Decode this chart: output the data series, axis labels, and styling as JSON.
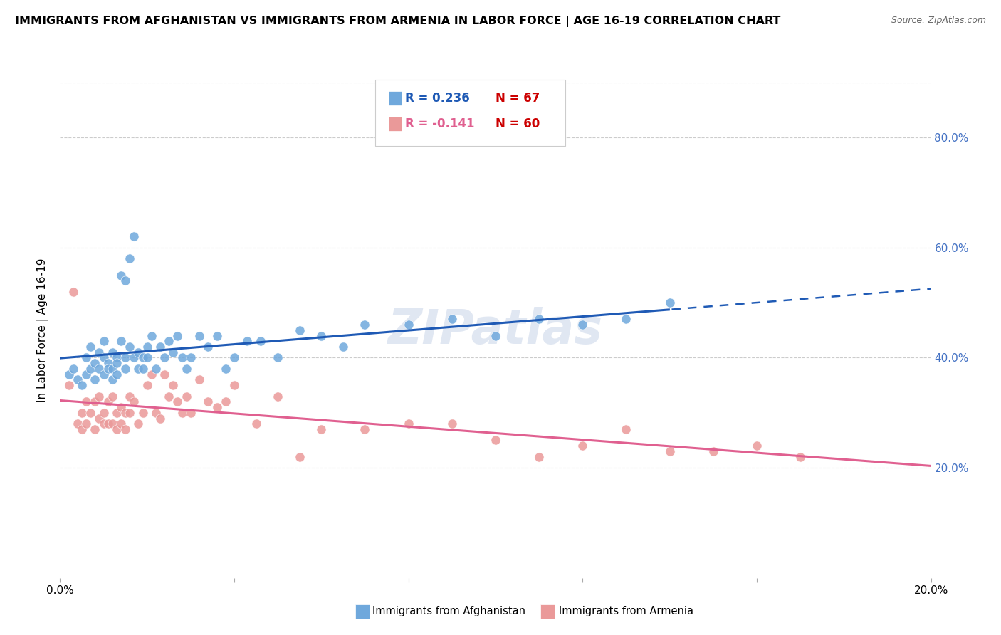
{
  "title": "IMMIGRANTS FROM AFGHANISTAN VS IMMIGRANTS FROM ARMENIA IN LABOR FORCE | AGE 16-19 CORRELATION CHART",
  "source": "Source: ZipAtlas.com",
  "ylabel": "In Labor Force | Age 16-19",
  "xlim": [
    0.0,
    0.2
  ],
  "ylim": [
    0.0,
    0.9
  ],
  "yticks": [
    0.2,
    0.4,
    0.6,
    0.8
  ],
  "ytick_labels": [
    "20.0%",
    "40.0%",
    "60.0%",
    "80.0%"
  ],
  "xticks": [
    0.0,
    0.04,
    0.08,
    0.12,
    0.16,
    0.2
  ],
  "xtick_labels": [
    "0.0%",
    "",
    "",
    "",
    "",
    "20.0%"
  ],
  "afghanistan_color": "#6fa8dc",
  "armenia_color": "#ea9999",
  "trendline_afghanistan_color": "#1f5ab5",
  "trendline_armenia_color": "#e06090",
  "legend_R_afghanistan": "R = 0.236",
  "legend_N_afghanistan": "N = 67",
  "legend_R_armenia": "R = -0.141",
  "legend_N_armenia": "N = 60",
  "watermark": "ZIPatlas",
  "afghanistan_x": [
    0.002,
    0.003,
    0.004,
    0.005,
    0.006,
    0.006,
    0.007,
    0.007,
    0.008,
    0.008,
    0.009,
    0.009,
    0.01,
    0.01,
    0.01,
    0.011,
    0.011,
    0.012,
    0.012,
    0.012,
    0.013,
    0.013,
    0.013,
    0.014,
    0.014,
    0.015,
    0.015,
    0.015,
    0.016,
    0.016,
    0.017,
    0.017,
    0.018,
    0.018,
    0.019,
    0.019,
    0.02,
    0.02,
    0.021,
    0.022,
    0.023,
    0.024,
    0.025,
    0.026,
    0.027,
    0.028,
    0.029,
    0.03,
    0.032,
    0.034,
    0.036,
    0.038,
    0.04,
    0.043,
    0.046,
    0.05,
    0.055,
    0.06,
    0.065,
    0.07,
    0.08,
    0.09,
    0.1,
    0.11,
    0.12,
    0.13,
    0.14
  ],
  "afghanistan_y": [
    0.37,
    0.38,
    0.36,
    0.35,
    0.4,
    0.37,
    0.38,
    0.42,
    0.36,
    0.39,
    0.38,
    0.41,
    0.4,
    0.37,
    0.43,
    0.39,
    0.38,
    0.41,
    0.38,
    0.36,
    0.4,
    0.37,
    0.39,
    0.43,
    0.55,
    0.4,
    0.38,
    0.54,
    0.42,
    0.58,
    0.4,
    0.62,
    0.41,
    0.38,
    0.4,
    0.38,
    0.42,
    0.4,
    0.44,
    0.38,
    0.42,
    0.4,
    0.43,
    0.41,
    0.44,
    0.4,
    0.38,
    0.4,
    0.44,
    0.42,
    0.44,
    0.38,
    0.4,
    0.43,
    0.43,
    0.4,
    0.45,
    0.44,
    0.42,
    0.46,
    0.46,
    0.47,
    0.44,
    0.47,
    0.46,
    0.47,
    0.5
  ],
  "armenia_x": [
    0.002,
    0.003,
    0.004,
    0.005,
    0.005,
    0.006,
    0.006,
    0.007,
    0.008,
    0.008,
    0.009,
    0.009,
    0.01,
    0.01,
    0.011,
    0.011,
    0.012,
    0.012,
    0.013,
    0.013,
    0.014,
    0.014,
    0.015,
    0.015,
    0.016,
    0.016,
    0.017,
    0.018,
    0.019,
    0.02,
    0.021,
    0.022,
    0.023,
    0.024,
    0.025,
    0.026,
    0.027,
    0.028,
    0.029,
    0.03,
    0.032,
    0.034,
    0.036,
    0.038,
    0.04,
    0.045,
    0.05,
    0.055,
    0.06,
    0.07,
    0.08,
    0.09,
    0.1,
    0.11,
    0.12,
    0.13,
    0.14,
    0.15,
    0.16,
    0.17
  ],
  "armenia_y": [
    0.35,
    0.52,
    0.28,
    0.3,
    0.27,
    0.32,
    0.28,
    0.3,
    0.27,
    0.32,
    0.29,
    0.33,
    0.28,
    0.3,
    0.32,
    0.28,
    0.33,
    0.28,
    0.3,
    0.27,
    0.31,
    0.28,
    0.3,
    0.27,
    0.33,
    0.3,
    0.32,
    0.28,
    0.3,
    0.35,
    0.37,
    0.3,
    0.29,
    0.37,
    0.33,
    0.35,
    0.32,
    0.3,
    0.33,
    0.3,
    0.36,
    0.32,
    0.31,
    0.32,
    0.35,
    0.28,
    0.33,
    0.22,
    0.27,
    0.27,
    0.28,
    0.28,
    0.25,
    0.22,
    0.24,
    0.27,
    0.23,
    0.23,
    0.24,
    0.22
  ]
}
